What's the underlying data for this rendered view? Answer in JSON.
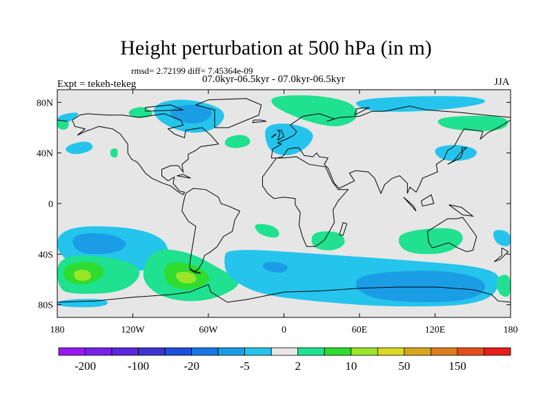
{
  "title": "Height perturbation at 500 hPa (in m)",
  "stats": "rmsd= 2.72199 diff= 7.45364e-09",
  "period": "07.0kyr-06.5kyr - 07.0kyr-06.5kyr",
  "experiment": "Expt = tekeh-tekeg",
  "season": "JJA",
  "map": {
    "lon_range": [
      -180,
      180
    ],
    "lat_range": [
      -90,
      90
    ],
    "projection": "cylindrical equidistant",
    "background_color": "#e6e6e6",
    "coastline_color": "#000000",
    "lat_ticks": [
      {
        "value": 80,
        "label": "80N"
      },
      {
        "value": 40,
        "label": "40N"
      },
      {
        "value": 0,
        "label": "0"
      },
      {
        "value": -40,
        "label": "40S"
      },
      {
        "value": -80,
        "label": "80S"
      }
    ],
    "lon_ticks": [
      {
        "value": -180,
        "label": "180"
      },
      {
        "value": -120,
        "label": "120W"
      },
      {
        "value": -60,
        "label": "60W"
      },
      {
        "value": 0,
        "label": "0"
      },
      {
        "value": 60,
        "label": "60E"
      },
      {
        "value": 120,
        "label": "120E"
      },
      {
        "value": 180,
        "label": "180"
      }
    ]
  },
  "colorbar": {
    "colors": [
      "#9a19ee",
      "#7a1fe6",
      "#5a27dd",
      "#3b33d3",
      "#1b4fdc",
      "#1777e3",
      "#1b9de6",
      "#25c4ec",
      "#e6e6e6",
      "#1fe18f",
      "#2fdc2f",
      "#9ae42a",
      "#d7d925",
      "#d8a51e",
      "#de7d1c",
      "#e34f1b",
      "#e91d1b"
    ],
    "labels": [
      {
        "index": 1,
        "text": "-200"
      },
      {
        "index": 3,
        "text": "-100"
      },
      {
        "index": 5,
        "text": "-20"
      },
      {
        "index": 7,
        "text": "-5"
      },
      {
        "index": 9,
        "text": "2"
      },
      {
        "index": 11,
        "text": "10"
      },
      {
        "index": 13,
        "text": "50"
      },
      {
        "index": 15,
        "text": "150"
      }
    ]
  },
  "shading": {
    "neg": "#25c4ec",
    "neg2": "#1b9de6",
    "pos": "#1fe18f",
    "pos2": "#2fdc2f",
    "pos3": "#9ae42a"
  }
}
